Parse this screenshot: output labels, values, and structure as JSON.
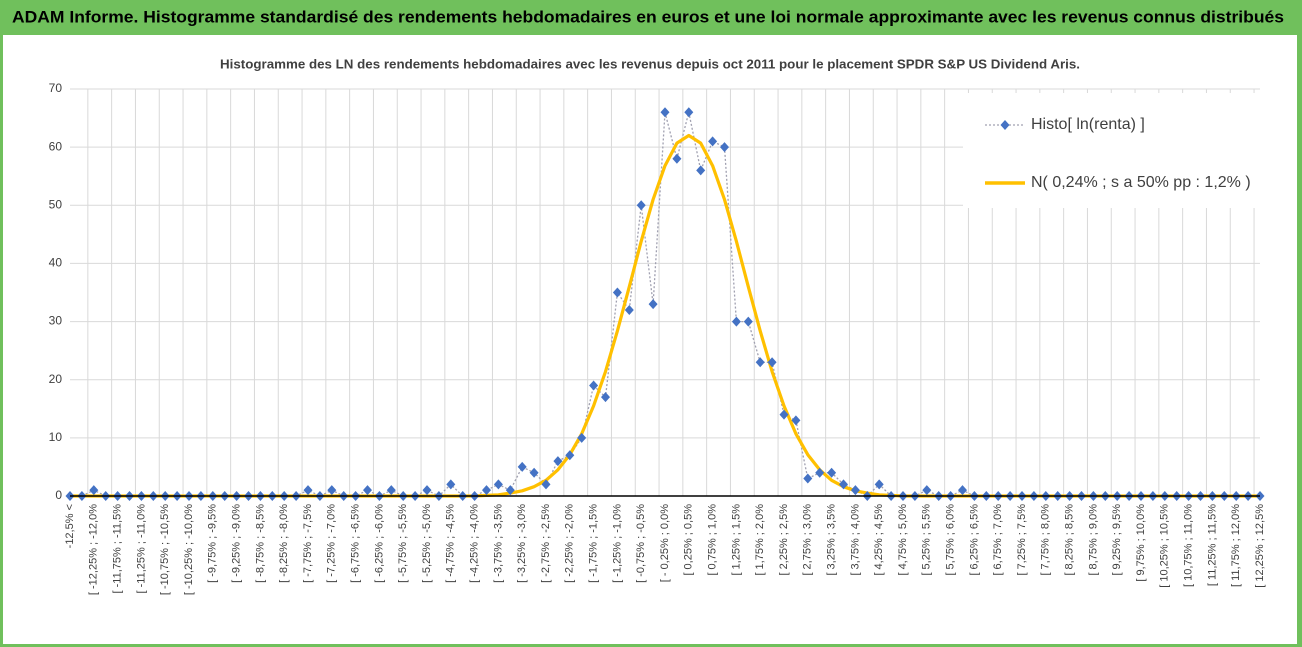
{
  "header": {
    "title": "ADAM Informe. Histogramme standardisé des rendements hebdomadaires en euros et une loi normale approximante avec les revenus connus distribués"
  },
  "chart_data": {
    "type": "line",
    "title": "Histogramme des LN des rendements hebdomadaires avec les revenus depuis oct 2011 pour le placement SPDR S&P US Dividend Aris.",
    "categories": [
      "-12,5% <",
      null,
      "[ -12,25% ; -12,0%",
      null,
      "[ -11,75% ; -11,5%",
      null,
      "[ -11,25% ; -11,0%",
      null,
      "[ -10,75% ; -10,5%",
      null,
      "[ -10,25% ; -10,0%",
      null,
      "[ -9,75% ; -9,5%",
      null,
      "[ -9,25% ; -9,0%",
      null,
      "[ -8,75% ; -8,5%",
      null,
      "[ -8,25% ; -8,0%",
      null,
      "[ -7,75% ; -7,5%",
      null,
      "[ -7,25% ; -7,0%",
      null,
      "[ -6,75% ; -6,5%",
      null,
      "[ -6,25% ; -6,0%",
      null,
      "[ -5,75% ; -5,5%",
      null,
      "[ -5,25% ; -5,0%",
      null,
      "[ -4,75% ; -4,5%",
      null,
      "[ -4,25% ; -4,0%",
      null,
      "[ -3,75% ; -3,5%",
      null,
      "[ -3,25% ; -3,0%",
      null,
      "[ -2,75% ; -2,5%",
      null,
      "[ -2,25% ; -2,0%",
      null,
      "[ -1,75% ; -1,5%",
      null,
      "[ -1,25% ; -1,0%",
      null,
      "[ -0,75% ; -0,5%",
      null,
      "[ - 0,25% ; 0,0%",
      null,
      "[ 0,25% ; 0,5%",
      null,
      "[ 0,75% ; 1,0%",
      null,
      "[ 1,25% ; 1,5%",
      null,
      "[ 1,75% ; 2,0%",
      null,
      "[ 2,25% ; 2,5%",
      null,
      "[ 2,75% ; 3,0%",
      null,
      "[ 3,25% ; 3,5%",
      null,
      "[ 3,75% ; 4,0%",
      null,
      "[ 4,25% ; 4,5%",
      null,
      "[ 4,75% ; 5,0%",
      null,
      "[ 5,25% ; 5,5%",
      null,
      "[ 5,75% ; 6,0%",
      null,
      "[ 6,25% ; 6,5%",
      null,
      "[ 6,75% ; 7,0%",
      null,
      "[ 7,25% ; 7,5%",
      null,
      "[ 7,75% ; 8,0%",
      null,
      "[ 8,25% ; 8,5%",
      null,
      "[ 8,75% ; 9,0%",
      null,
      "[ 9,25% ; 9,5%",
      null,
      "[ 9,75% ; 10,0%",
      null,
      "[ 10,25% ; 10,5%",
      null,
      "[ 10,75% ; 11,0%",
      null,
      "[ 11,25% ; 11,5%",
      null,
      "[ 11,75% ; 12,0%",
      null,
      "[ 12,25% ; 12,5%"
    ],
    "series": [
      {
        "name": "Histo[ ln(renta) ]",
        "color": "#4472c4",
        "values": [
          0,
          0,
          1,
          0,
          0,
          0,
          0,
          0,
          0,
          0,
          0,
          0,
          0,
          0,
          0,
          0,
          0,
          0,
          0,
          0,
          1,
          0,
          1,
          0,
          0,
          1,
          0,
          1,
          0,
          0,
          1,
          0,
          2,
          0,
          0,
          1,
          2,
          1,
          5,
          4,
          2,
          6,
          7,
          10,
          19,
          17,
          35,
          32,
          50,
          33,
          66,
          58,
          66,
          56,
          61,
          60,
          30,
          30,
          23,
          23,
          14,
          13,
          3,
          4,
          4,
          2,
          1,
          0,
          2,
          0,
          0,
          0,
          1,
          0,
          0,
          1,
          0,
          0,
          0,
          0,
          0,
          0,
          0,
          0,
          0,
          0,
          0,
          0,
          0,
          0,
          0,
          0,
          0,
          0,
          0,
          0,
          0,
          0,
          0,
          0,
          0
        ]
      },
      {
        "name": "N( 0,24% ; s a 50% pp : 1,2% )",
        "color": "#ffc000",
        "values": [
          0,
          0,
          0,
          0,
          0,
          0,
          0,
          0,
          0,
          0,
          0,
          0,
          0,
          0,
          0,
          0,
          0,
          0,
          0,
          0,
          0,
          0,
          0,
          0,
          0,
          0,
          0,
          0,
          0,
          0,
          0,
          0,
          0,
          0,
          0,
          0.1,
          0.2,
          0.5,
          0.9,
          1.6,
          2.7,
          4.5,
          7.1,
          10.7,
          15.5,
          21.4,
          28.4,
          36,
          43.8,
          51,
          56.8,
          60.7,
          62,
          60.7,
          56.8,
          51,
          43.8,
          36,
          28.4,
          21.4,
          15.5,
          10.7,
          7.1,
          4.5,
          2.7,
          1.6,
          0.9,
          0.5,
          0.2,
          0.1,
          0,
          0,
          0,
          0,
          0,
          0,
          0,
          0,
          0,
          0,
          0,
          0,
          0,
          0,
          0,
          0,
          0,
          0,
          0,
          0,
          0,
          0,
          0,
          0,
          0,
          0,
          0,
          0,
          0,
          0,
          0
        ]
      }
    ],
    "ylim": [
      0,
      70
    ],
    "yticks": [
      0,
      10,
      20,
      30,
      40,
      50,
      60,
      70
    ],
    "grid": true,
    "legend": "top-right"
  }
}
